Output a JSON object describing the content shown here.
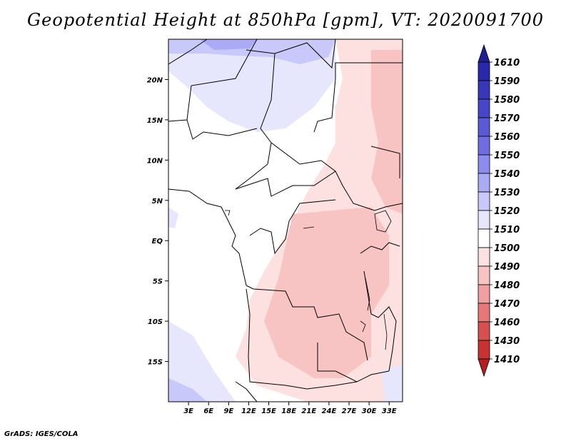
{
  "title": "Geopotential Height at 850hPa [gpm], VT: 2020091700",
  "footer": "GrADS: IGES/COLA",
  "map": {
    "lat_labels": [
      "20N",
      "15N",
      "10N",
      "5N",
      "EQ",
      "5S",
      "10S",
      "15S"
    ],
    "lat_values": [
      20,
      15,
      10,
      5,
      0,
      -5,
      -10,
      -15
    ],
    "lon_labels": [
      "3E",
      "6E",
      "9E",
      "12E",
      "15E",
      "18E",
      "21E",
      "24E",
      "27E",
      "30E",
      "33E"
    ],
    "lon_values": [
      3,
      6,
      9,
      12,
      15,
      18,
      21,
      24,
      27,
      30,
      33
    ],
    "lon_range": [
      0,
      35
    ],
    "lat_range": [
      -20,
      25
    ]
  },
  "legend": {
    "levels": [
      "1610",
      "1590",
      "1580",
      "1570",
      "1560",
      "1550",
      "1540",
      "1530",
      "1520",
      "1510",
      "1500",
      "1490",
      "1480",
      "1470",
      "1460",
      "1430",
      "1410"
    ],
    "colors": [
      "#1e1e96",
      "#2828aa",
      "#3737b9",
      "#4646c8",
      "#5a5ad7",
      "#6e6ee1",
      "#8c8cee",
      "#aaaaf5",
      "#c8c8fa",
      "#e6e6fd",
      "#ffffff",
      "#fde1e1",
      "#f8c3c3",
      "#f0a0a0",
      "#e67878",
      "#d75050",
      "#c83232",
      "#b41e1e"
    ]
  },
  "colors": {
    "ocean": "#e6e6fd",
    "land_neutral": "#ffffff",
    "low_pink": "#fde1e1",
    "mid_pink": "#f8c3c3",
    "high_blue": "#c8c8fa",
    "deep_blue": "#aaaaf5"
  }
}
